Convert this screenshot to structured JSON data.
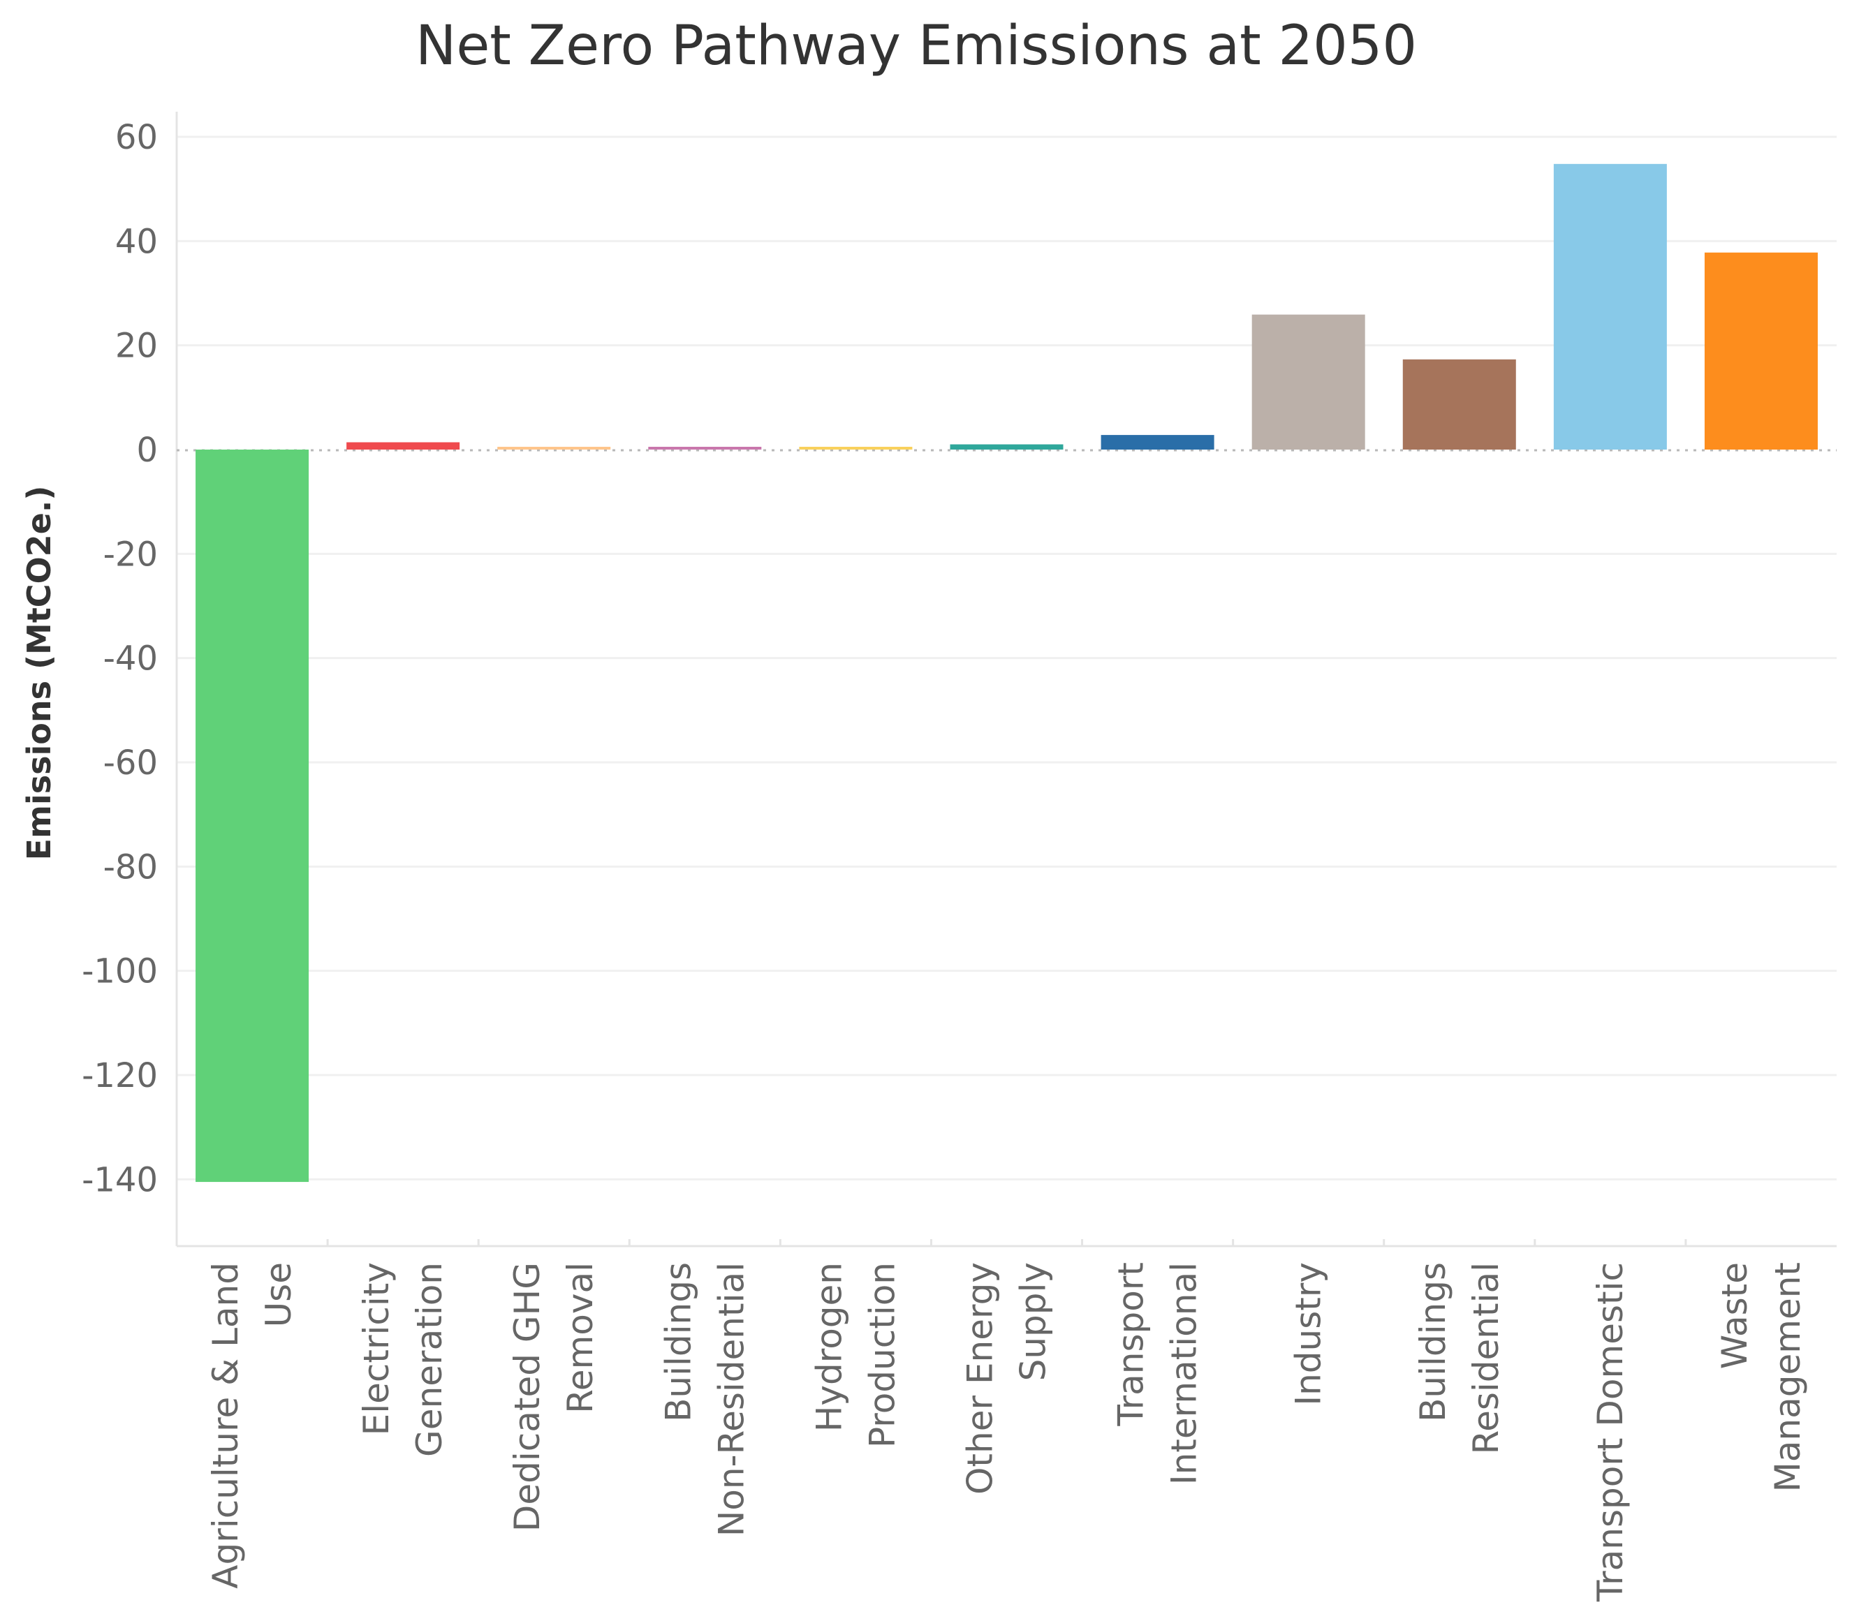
{
  "chart_data": {
    "type": "bar",
    "title": "Net Zero Pathway Emissions at 2050",
    "xlabel": "",
    "ylabel": "Emissions (MtCO2e.)",
    "ylim": [
      -150,
      65
    ],
    "yticks": [
      60,
      40,
      20,
      0,
      -20,
      -40,
      -60,
      -80,
      -100,
      -120,
      -140
    ],
    "grid": true,
    "categories": [
      [
        "Agriculture & Land",
        "Use"
      ],
      [
        "Electricity",
        "Generation"
      ],
      [
        "Dedicated GHG",
        "Removal"
      ],
      [
        "Buildings",
        "Non-Residential"
      ],
      [
        "Hydrogen",
        "Production"
      ],
      [
        "Other Energy",
        "Supply"
      ],
      [
        "Transport",
        "International"
      ],
      [
        "Industry"
      ],
      [
        "Buildings",
        "Residential"
      ],
      [
        "Transport Domestic"
      ],
      [
        "Waste",
        "Management"
      ]
    ],
    "values": [
      -140.5,
      1.4,
      0.2,
      0.3,
      0.4,
      1.0,
      2.8,
      25.9,
      17.3,
      54.8,
      37.8
    ],
    "colors": [
      "#60d178",
      "#ef4a4e",
      "#ffc58b",
      "#c977ac",
      "#f9d15c",
      "#2fa79b",
      "#2a6ea8",
      "#bbb0a9",
      "#a6745b",
      "#88c9e8",
      "#fd8d1d"
    ]
  }
}
